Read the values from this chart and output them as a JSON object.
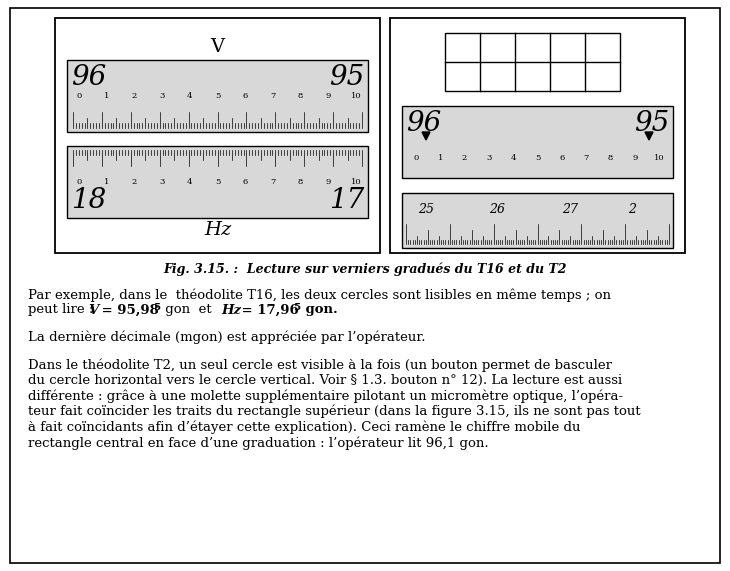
{
  "bg_color": "#ffffff",
  "fig_width": 7.3,
  "fig_height": 5.71,
  "fig_caption": "Fig. 3.15. :  Lecture sur verniers gradués du T16 et du T2",
  "paragraph1_a": "Par exemple, dans le  théodolite T16, les deux cercles sont lisibles en même temps ; on",
  "paragraph1_b": "peut lire : ",
  "paragraph1_V": "V",
  "paragraph1_c": " = 95,98",
  "paragraph1_sup1": "5",
  "paragraph1_d": " gon  et  ",
  "paragraph1_Hz": "Hz",
  "paragraph1_e": " = 17,96",
  "paragraph1_sup2": "5",
  "paragraph1_f": " gon.",
  "paragraph2": "La dernière décimale (mgon) est appréciée par l’opérateur.",
  "paragraph3_lines": [
    "Dans le théodolite T2, un seul cercle est visible à la fois (un bouton permet de basculer",
    "du cercle horizontal vers le cercle vertical. Voir § 1.3. bouton n° 12). La lecture est aussi",
    "différente : grâce à une molette supplémentaire pilotant un micromètre optique, l’opéra-",
    "teur fait coïncider les traits du rectangle supérieur (dans la figure 3.15, ils ne sont pas tout",
    "à fait coïncidants afin d’étayer cette explication). Ceci ramène le chiffre mobile du",
    "rectangle central en face d’une graduation : l’opérateur lit 96,1 gon."
  ]
}
